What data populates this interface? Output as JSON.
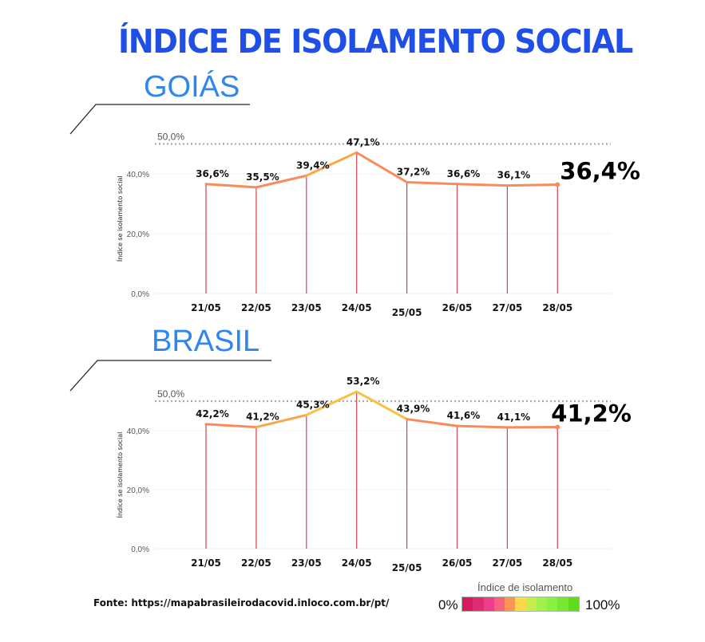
{
  "title": "ÍNDICE DE ISOLAMENTO SOCIAL",
  "source": "Fonte: https://mapabrasileirodacovid.inloco.com.br/pt/",
  "legend": {
    "title": "Índice de isolamento",
    "min_label": "0%",
    "max_label": "100%",
    "colors": [
      "#d81b60",
      "#e02a74",
      "#ee3d8c",
      "#f8607e",
      "#fb9455",
      "#fdd94a",
      "#c7ec50",
      "#9ef24a",
      "#88f040",
      "#76e832",
      "#5ddd1c"
    ]
  },
  "chart_data": [
    {
      "type": "line",
      "title": "GOIÁS",
      "ylabel": "Índice se isolamento social",
      "ylim": [
        0,
        50
      ],
      "yticks": [
        "0,0%",
        "20,0%",
        "40,0%"
      ],
      "ytick_values": [
        0,
        20,
        40
      ],
      "reference": {
        "value": 50,
        "label": "50,0%"
      },
      "categories": [
        "21/05",
        "22/05",
        "23/05",
        "24/05",
        "25/05",
        "26/05",
        "27/05",
        "28/05"
      ],
      "values": [
        36.6,
        35.5,
        39.4,
        47.1,
        37.2,
        36.6,
        36.1,
        36.4
      ],
      "labels": [
        "36,6%",
        "35,5%",
        "39,4%",
        "47,1%",
        "37,2%",
        "36,6%",
        "36,1%",
        "36,4%"
      ]
    },
    {
      "type": "line",
      "title": "BRASIL",
      "ylabel": "Índice se isolamento social",
      "ylim": [
        0,
        50
      ],
      "yticks": [
        "0,0%",
        "20,0%",
        "40,0%"
      ],
      "ytick_values": [
        0,
        20,
        40
      ],
      "reference": {
        "value": 50,
        "label": "50,0%"
      },
      "categories": [
        "21/05",
        "22/05",
        "23/05",
        "24/05",
        "25/05",
        "26/05",
        "27/05",
        "28/05"
      ],
      "values": [
        42.2,
        41.2,
        45.3,
        53.2,
        43.9,
        41.6,
        41.1,
        41.2
      ],
      "labels": [
        "42,2%",
        "41,2%",
        "45,3%",
        "53,2%",
        "43,9%",
        "41,6%",
        "41,1%",
        "41,2%"
      ]
    }
  ]
}
